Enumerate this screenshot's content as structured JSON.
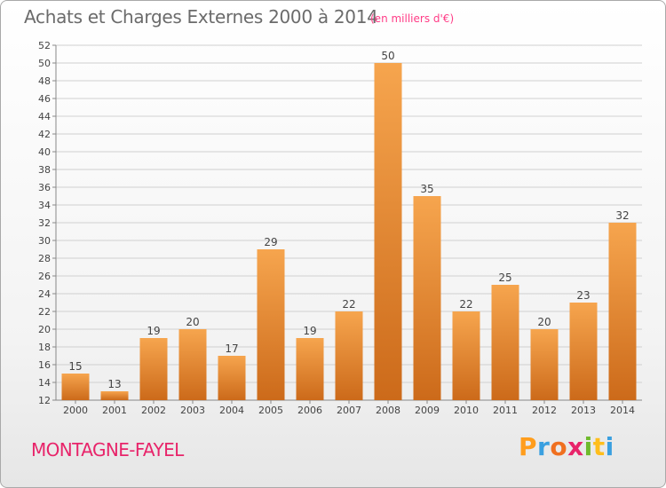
{
  "header": {
    "title": "Achats et Charges Externes 2000 à 2014",
    "unit": "(en milliers d'€)"
  },
  "footer": {
    "place": "MONTAGNE-FAYEL",
    "brand_letters": [
      "P",
      "r",
      "o",
      "x",
      "i",
      "t",
      "i"
    ],
    "brand_colors": [
      "#ff9d1c",
      "#3aa0e0",
      "#f07020",
      "#e8246a",
      "#6fba2c",
      "#ffbe1c",
      "#3aa0e0"
    ]
  },
  "colors": {
    "bar_light": "#f6a54e",
    "bar_dark": "#cc6a1a",
    "grid": "#d0d0d0",
    "axis_text": "#444444"
  },
  "chart_data": {
    "type": "bar",
    "title": "Achats et Charges Externes 2000 à 2014",
    "subtitle": "(en milliers d'€)",
    "categories": [
      "2000",
      "2001",
      "2002",
      "2003",
      "2004",
      "2005",
      "2006",
      "2007",
      "2008",
      "2009",
      "2010",
      "2011",
      "2012",
      "2013",
      "2014"
    ],
    "values": [
      15,
      13,
      19,
      20,
      17,
      29,
      19,
      22,
      50,
      35,
      22,
      25,
      20,
      23,
      32
    ],
    "ylim": [
      12,
      52
    ],
    "ytick_step": 2,
    "grid": true,
    "legend": "none"
  }
}
